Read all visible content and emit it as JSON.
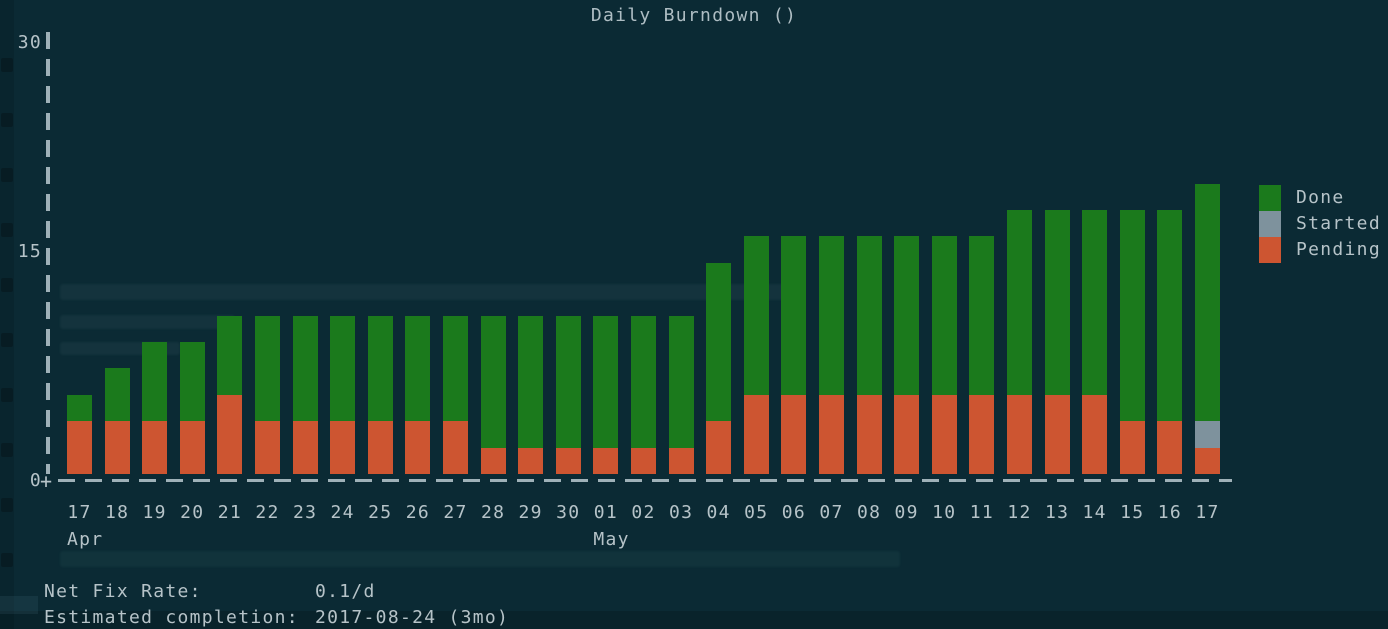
{
  "title": "Daily Burndown ()",
  "legend": [
    {
      "label": "Done",
      "color": "#1b7a1c"
    },
    {
      "label": "Started",
      "color": "#7e929d"
    },
    {
      "label": "Pending",
      "color": "#cd5531"
    }
  ],
  "chart_data": {
    "type": "bar",
    "stacked": true,
    "title": "Daily Burndown ()",
    "categories": [
      "Apr 17",
      "Apr 18",
      "Apr 19",
      "Apr 20",
      "Apr 21",
      "Apr 22",
      "Apr 23",
      "Apr 24",
      "Apr 25",
      "Apr 26",
      "Apr 27",
      "Apr 28",
      "Apr 29",
      "Apr 30",
      "May 01",
      "May 02",
      "May 03",
      "May 04",
      "May 05",
      "May 06",
      "May 07",
      "May 08",
      "May 09",
      "May 10",
      "May 11",
      "May 12",
      "May 13",
      "May 14",
      "May 15",
      "May 16",
      "May 17"
    ],
    "series": [
      {
        "name": "Pending",
        "values": [
          4,
          4,
          4,
          4,
          6,
          4,
          4,
          4,
          4,
          4,
          4,
          2,
          2,
          2,
          2,
          2,
          2,
          4,
          6,
          6,
          6,
          6,
          6,
          6,
          6,
          6,
          6,
          6,
          4,
          4,
          2
        ]
      },
      {
        "name": "Started",
        "values": [
          0,
          0,
          0,
          0,
          0,
          0,
          0,
          0,
          0,
          0,
          0,
          0,
          0,
          0,
          0,
          0,
          0,
          0,
          0,
          0,
          0,
          0,
          0,
          0,
          0,
          0,
          0,
          0,
          0,
          0,
          2
        ]
      },
      {
        "name": "Done",
        "values": [
          2,
          4,
          6,
          6,
          6,
          8,
          8,
          8,
          8,
          8,
          8,
          10,
          10,
          10,
          10,
          10,
          10,
          12,
          12,
          12,
          12,
          12,
          12,
          12,
          12,
          14,
          14,
          14,
          16,
          16,
          18
        ]
      }
    ],
    "ylim": [
      0,
      30
    ],
    "y_ticks": [
      "30",
      "15",
      "0"
    ],
    "grid": false,
    "legend_position": "right"
  },
  "x_axis": {
    "day_labels": [
      "17",
      "18",
      "19",
      "20",
      "21",
      "22",
      "23",
      "24",
      "25",
      "26",
      "27",
      "28",
      "29",
      "30",
      "01",
      "02",
      "03",
      "04",
      "05",
      "06",
      "07",
      "08",
      "09",
      "10",
      "11",
      "12",
      "13",
      "14",
      "15",
      "16",
      "17"
    ],
    "month_breaks": [
      {
        "index": 0,
        "label": "Apr"
      },
      {
        "index": 14,
        "label": "May"
      }
    ]
  },
  "stats": {
    "line1_label": "Net Fix Rate:",
    "line1_value": "0.1/d",
    "line2_label": "Estimated completion:",
    "line2_value": "2017-08-24 (3mo)"
  }
}
